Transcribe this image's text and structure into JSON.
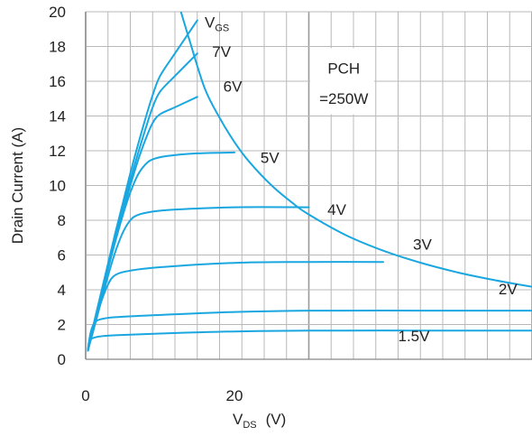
{
  "chart_data": {
    "type": "line",
    "title": "",
    "xlabel": {
      "main": "V",
      "sub": "DS",
      "unit": "(V)"
    },
    "ylabel": "Drain Current  (A)",
    "xlim": [
      0,
      60
    ],
    "ylim": [
      0,
      20
    ],
    "x_ticks": [
      0,
      20
    ],
    "y_ticks": [
      0,
      2,
      4,
      6,
      8,
      10,
      12,
      14,
      16,
      18,
      20
    ],
    "grid": true,
    "line_color": "#1AA7E0",
    "series": [
      {
        "name": "1.5V",
        "label_at": [
          42,
          1.05
        ],
        "points": [
          [
            0.4,
            0.9
          ],
          [
            0.7,
            1.15
          ],
          [
            1.2,
            1.25
          ],
          [
            2,
            1.32
          ],
          [
            4,
            1.38
          ],
          [
            10,
            1.48
          ],
          [
            20,
            1.6
          ],
          [
            30,
            1.65
          ],
          [
            45,
            1.65
          ],
          [
            60,
            1.65
          ]
        ]
      },
      {
        "name": "2V",
        "label_at": [
          55.5,
          3.75
        ],
        "points": [
          [
            0.3,
            0.6
          ],
          [
            0.7,
            1.6
          ],
          [
            1.2,
            2.1
          ],
          [
            2,
            2.3
          ],
          [
            4,
            2.42
          ],
          [
            10,
            2.55
          ],
          [
            20,
            2.72
          ],
          [
            30,
            2.8
          ],
          [
            45,
            2.8
          ],
          [
            60,
            2.8
          ]
        ]
      },
      {
        "name": "3V",
        "label_at": [
          44,
          6.3
        ],
        "points": [
          [
            0.3,
            0.5
          ],
          [
            1,
            1.8
          ],
          [
            2,
            3.2
          ],
          [
            3,
            4.3
          ],
          [
            4,
            4.85
          ],
          [
            6,
            5.1
          ],
          [
            10,
            5.3
          ],
          [
            20,
            5.55
          ],
          [
            30,
            5.6
          ],
          [
            40,
            5.6
          ]
        ]
      },
      {
        "name": "4V",
        "label_at": [
          32.5,
          8.3
        ],
        "points": [
          [
            0.3,
            0.5
          ],
          [
            1,
            1.6
          ],
          [
            2,
            3.2
          ],
          [
            3,
            4.8
          ],
          [
            4,
            6.2
          ],
          [
            5,
            7.3
          ],
          [
            6,
            8.0
          ],
          [
            7,
            8.3
          ],
          [
            9,
            8.5
          ],
          [
            12,
            8.62
          ],
          [
            20,
            8.75
          ],
          [
            30,
            8.75
          ]
        ]
      },
      {
        "name": "5V",
        "label_at": [
          23.5,
          11.3
        ],
        "points": [
          [
            0.3,
            0.5
          ],
          [
            1,
            1.8
          ],
          [
            2,
            3.5
          ],
          [
            3,
            5.2
          ],
          [
            4,
            6.8
          ],
          [
            5,
            8.3
          ],
          [
            6,
            9.6
          ],
          [
            7,
            10.6
          ],
          [
            8,
            11.2
          ],
          [
            9,
            11.5
          ],
          [
            11,
            11.7
          ],
          [
            15,
            11.85
          ],
          [
            20,
            11.9
          ]
        ]
      },
      {
        "name": "6V",
        "label_at": [
          18.5,
          15.4
        ],
        "points": [
          [
            0.3,
            0.5
          ],
          [
            1,
            1.8
          ],
          [
            2,
            3.5
          ],
          [
            3,
            5.2
          ],
          [
            4,
            6.9
          ],
          [
            5,
            8.5
          ],
          [
            6,
            10.0
          ],
          [
            7,
            11.4
          ],
          [
            8,
            12.6
          ],
          [
            9,
            13.6
          ],
          [
            10,
            14.1
          ],
          [
            12,
            14.5
          ],
          [
            15,
            15.1
          ]
        ]
      },
      {
        "name": "7V",
        "label_at": [
          17,
          17.4
        ],
        "points": [
          [
            0.3,
            0.5
          ],
          [
            1,
            1.8
          ],
          [
            2,
            3.5
          ],
          [
            3,
            5.3
          ],
          [
            4,
            7.0
          ],
          [
            5,
            8.7
          ],
          [
            6,
            10.3
          ],
          [
            7,
            11.8
          ],
          [
            8,
            13.2
          ],
          [
            9,
            14.5
          ],
          [
            10,
            15.4
          ],
          [
            12,
            16.3
          ],
          [
            15,
            17.6
          ]
        ]
      },
      {
        "name": "VGS",
        "label_at": [
          16,
          19.1
        ],
        "points": [
          [
            0.3,
            0.5
          ],
          [
            1,
            1.9
          ],
          [
            2,
            3.7
          ],
          [
            3,
            5.5
          ],
          [
            4,
            7.3
          ],
          [
            5,
            9.0
          ],
          [
            6,
            10.7
          ],
          [
            7,
            12.3
          ],
          [
            8,
            13.8
          ],
          [
            9,
            15.2
          ],
          [
            10,
            16.3
          ],
          [
            12,
            17.6
          ],
          [
            15,
            19.5
          ]
        ]
      },
      {
        "name": "PCH",
        "label_at": null,
        "points": [
          [
            12.6,
            20.3
          ],
          [
            14,
            18.3
          ],
          [
            16,
            15.6
          ],
          [
            18,
            13.9
          ],
          [
            20,
            12.5
          ],
          [
            22,
            11.36
          ],
          [
            25,
            10.0
          ],
          [
            28,
            8.93
          ],
          [
            30,
            8.33
          ],
          [
            35,
            7.14
          ],
          [
            40,
            6.25
          ],
          [
            45,
            5.56
          ],
          [
            50,
            5.0
          ],
          [
            55,
            4.55
          ],
          [
            60,
            4.17
          ]
        ]
      }
    ],
    "labels": {
      "vgs_main": "V",
      "vgs_sub": "GS",
      "v7": "7V",
      "v6": "6V",
      "v5": "5V",
      "v4": "4V",
      "v3": "3V",
      "v2": "2V",
      "v15": "1.5V",
      "pch_line1": "PCH",
      "pch_line2": "=250W"
    }
  }
}
